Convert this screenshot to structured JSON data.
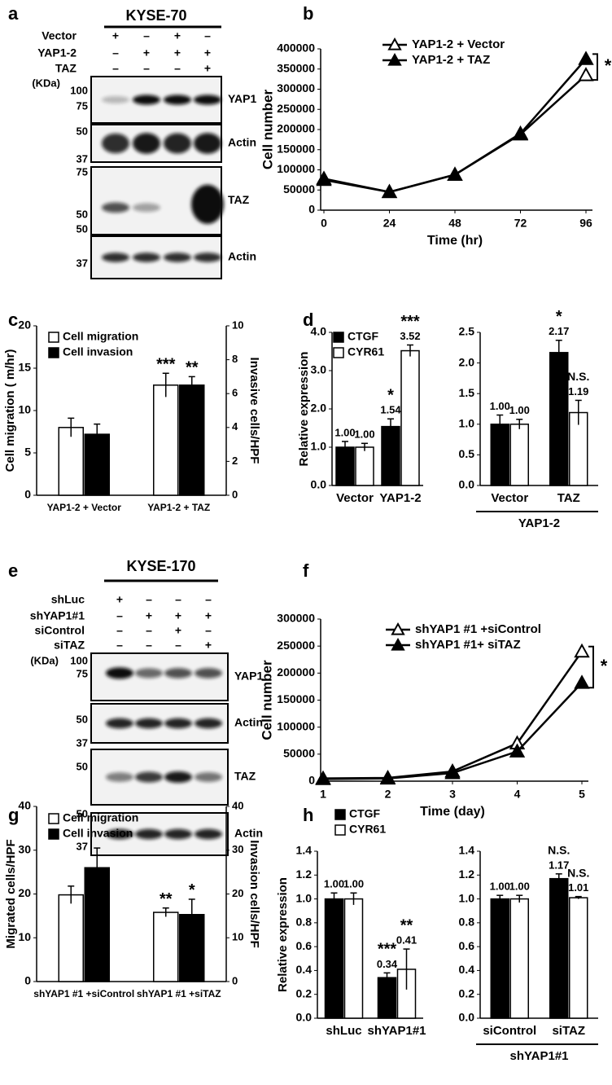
{
  "panel_labels": [
    "a",
    "b",
    "c",
    "d",
    "e",
    "f",
    "g",
    "h"
  ],
  "blots": [
    {
      "title": "KYSE-70",
      "unit": "(KDa)",
      "rows": [
        {
          "label": "Vector",
          "signs": [
            "+",
            "–",
            "+",
            "–"
          ]
        },
        {
          "label": "YAP1-2",
          "signs": [
            "–",
            "+",
            "+",
            "+"
          ]
        },
        {
          "label": "TAZ",
          "signs": [
            "–",
            "–",
            "–",
            "+"
          ]
        }
      ],
      "panels": [
        {
          "name": "YAP1",
          "markers": [
            "100",
            "75"
          ]
        },
        {
          "name": "Actin",
          "markers": [
            "50",
            "37"
          ]
        },
        {
          "name": "TAZ",
          "markers": [
            "75",
            "50"
          ]
        },
        {
          "name": "Actin",
          "markers": [
            "50",
            "37"
          ]
        }
      ]
    },
    {
      "title": "KYSE-170",
      "unit": "(KDa)",
      "rows": [
        {
          "label": "shLuc",
          "signs": [
            "+",
            "–",
            "–",
            "–"
          ]
        },
        {
          "label": "shYAP1#1",
          "signs": [
            "–",
            "+",
            "+",
            "+"
          ]
        },
        {
          "label": "siControl",
          "signs": [
            "–",
            "–",
            "+",
            "–"
          ]
        },
        {
          "label": "siTAZ",
          "signs": [
            "–",
            "–",
            "–",
            "+"
          ]
        }
      ],
      "panels": [
        {
          "name": "YAP1",
          "markers": [
            "100",
            "75"
          ]
        },
        {
          "name": "Actin",
          "markers": [
            "50",
            "37"
          ]
        },
        {
          "name": "TAZ",
          "markers": [
            "50"
          ]
        },
        {
          "name": "Actin",
          "markers": [
            "50",
            "37"
          ]
        }
      ]
    }
  ],
  "chart_data": [
    {
      "type": "line",
      "xlabel": "Time (hr)",
      "ylabel": "Cell number",
      "x": [
        0,
        24,
        48,
        72,
        96
      ],
      "xlim": [
        0,
        96
      ],
      "xticks": [
        0,
        24,
        48,
        72,
        96
      ],
      "ylim": [
        0,
        400000
      ],
      "yticks": [
        0,
        50000,
        100000,
        150000,
        200000,
        250000,
        300000,
        350000,
        400000
      ],
      "series": [
        {
          "name": "YAP1-2 + Vector",
          "color": "#000000",
          "marker_fill": "#ffffff",
          "values": [
            75000,
            45000,
            88000,
            188000,
            335000
          ]
        },
        {
          "name": "YAP1-2 + TAZ",
          "color": "#000000",
          "marker_fill": "#000000",
          "values": [
            78000,
            45000,
            88000,
            190000,
            375000
          ]
        }
      ],
      "annotation": "*"
    },
    {
      "type": "bar",
      "ylabel": "Cell migration ( m/hr)",
      "y2label": "Invasive cells/HPF",
      "categories": [
        "YAP1-2 + Vector",
        "YAP1-2 + TAZ"
      ],
      "ylim": [
        0,
        20
      ],
      "yticks": [
        0,
        5,
        10,
        15,
        20
      ],
      "y2lim": [
        0,
        10
      ],
      "y2ticks": [
        0,
        2,
        4,
        6,
        8,
        10
      ],
      "series": [
        {
          "name": "Cell migration",
          "color": "#ffffff",
          "values": [
            8.0,
            13.0
          ],
          "errors": [
            1.1,
            1.4
          ],
          "significance": [
            null,
            "***"
          ]
        },
        {
          "name": "Cell invasion",
          "color": "#000000",
          "axis": "y2",
          "values": [
            3.6,
            6.5
          ],
          "errors": [
            0.6,
            0.5
          ],
          "significance": [
            null,
            "**"
          ]
        }
      ]
    },
    {
      "type": "bar",
      "ylabel": "Relative expression",
      "categories": [
        "Vector",
        "YAP1-2"
      ],
      "ylim": [
        0,
        4
      ],
      "yticks": [
        {
          "value": 0,
          "label": "0.0"
        },
        {
          "value": 1,
          "label": "1.0"
        },
        {
          "value": 2,
          "label": "2.0"
        },
        {
          "value": 3,
          "label": "3.0"
        },
        {
          "value": 4,
          "label": "4.0"
        }
      ],
      "series": [
        {
          "name": "CTGF",
          "color": "#000000",
          "values": [
            1.0,
            1.54
          ],
          "value_labels": [
            "1.00",
            "1.54"
          ],
          "errors": [
            0.15,
            0.2
          ],
          "significance": [
            null,
            "*"
          ]
        },
        {
          "name": "CYR61",
          "color": "#ffffff",
          "values": [
            1.0,
            3.52
          ],
          "value_labels": [
            "1.00",
            "3.52"
          ],
          "errors": [
            0.1,
            0.15
          ],
          "significance": [
            null,
            "***"
          ]
        }
      ]
    },
    {
      "type": "bar",
      "group_label": "YAP1-2",
      "categories": [
        "Vector",
        "TAZ"
      ],
      "ylim": [
        0,
        2.5
      ],
      "yticks": [
        {
          "value": 0,
          "label": "0.0"
        },
        0.5,
        {
          "value": 1,
          "label": "1.0"
        },
        1.5,
        {
          "value": 2,
          "label": "2.0"
        },
        2.5
      ],
      "series": [
        {
          "color": "#000000",
          "values": [
            1.0,
            2.17
          ],
          "value_labels": [
            "1.00",
            "2.17"
          ],
          "errors": [
            0.15,
            0.2
          ],
          "significance": [
            null,
            "*"
          ]
        },
        {
          "color": "#ffffff",
          "values": [
            1.0,
            1.19
          ],
          "value_labels": [
            "1.00",
            "1.19"
          ],
          "errors": [
            0.08,
            0.2
          ],
          "significance": [
            null,
            "N.S."
          ]
        }
      ]
    },
    {
      "type": "line",
      "xlabel": "Time (day)",
      "ylabel": "Cell number",
      "x": [
        1,
        2,
        3,
        4,
        5
      ],
      "xlim": [
        1,
        5
      ],
      "xticks": [
        1,
        2,
        3,
        4,
        5
      ],
      "ylim": [
        0,
        300000
      ],
      "yticks": [
        0,
        50000,
        100000,
        150000,
        200000,
        250000,
        300000
      ],
      "series": [
        {
          "name": "shYAP1 #1 +siControl",
          "color": "#000000",
          "marker_fill": "#ffffff",
          "values": [
            5000,
            6000,
            18000,
            70000,
            240000
          ]
        },
        {
          "name": "shYAP1 #1+ siTAZ",
          "color": "#000000",
          "marker_fill": "#000000",
          "values": [
            4000,
            5000,
            15000,
            55000,
            182000
          ]
        }
      ],
      "annotation": "*"
    },
    {
      "type": "bar",
      "ylabel": "Migrated cells/HPF",
      "y2label": "Invasion cells/HPF",
      "categories": [
        "shYAP1 #1 +siControl",
        "shYAP1 #1 +siTAZ"
      ],
      "ylim": [
        0,
        40
      ],
      "yticks": [
        0,
        10,
        20,
        30,
        40
      ],
      "y2lim": [
        0,
        40
      ],
      "y2ticks": [
        0,
        10,
        20,
        30,
        40
      ],
      "series": [
        {
          "name": "Cell migration",
          "color": "#ffffff",
          "values": [
            19.8,
            15.8
          ],
          "errors": [
            2.0,
            1.0
          ],
          "significance": [
            null,
            "**"
          ]
        },
        {
          "name": "Cell invasion",
          "color": "#000000",
          "axis": "y2",
          "values": [
            26.0,
            15.3
          ],
          "errors": [
            4.5,
            3.5
          ],
          "significance": [
            null,
            "*"
          ]
        }
      ]
    },
    {
      "type": "bar",
      "ylabel": "Relative expression",
      "categories": [
        "shLuc",
        "shYAP1#1"
      ],
      "ylim": [
        0,
        1.4
      ],
      "yticks": [
        {
          "value": 0,
          "label": "0.0"
        },
        0.2,
        0.4,
        0.6,
        0.8,
        {
          "value": 1,
          "label": "1.0"
        },
        1.2,
        1.4
      ],
      "series": [
        {
          "name": "CTGF",
          "color": "#000000",
          "values": [
            1.0,
            0.34
          ],
          "value_labels": [
            "1.00",
            "0.34"
          ],
          "errors": [
            0.05,
            0.04
          ],
          "significance": [
            null,
            "***"
          ]
        },
        {
          "name": "CYR61",
          "color": "#ffffff",
          "values": [
            1.0,
            0.41
          ],
          "value_labels": [
            "1.00",
            "0.41"
          ],
          "errors": [
            0.05,
            0.17
          ],
          "significance": [
            null,
            "**"
          ]
        }
      ]
    },
    {
      "type": "bar",
      "group_label": "shYAP1#1",
      "categories": [
        "siControl",
        "siTAZ"
      ],
      "ylim": [
        0,
        1.4
      ],
      "yticks": [
        {
          "value": 0,
          "label": "0.0"
        },
        0.2,
        0.4,
        0.6,
        0.8,
        {
          "value": 1,
          "label": "1.0"
        },
        1.2,
        1.4
      ],
      "series": [
        {
          "color": "#000000",
          "values": [
            1.0,
            1.17
          ],
          "value_labels": [
            "1.00",
            "1.17"
          ],
          "errors": [
            0.03,
            0.04
          ],
          "significance": [
            null,
            "N.S."
          ]
        },
        {
          "color": "#ffffff",
          "values": [
            1.0,
            1.01
          ],
          "value_labels": [
            "1.00",
            "1.01"
          ],
          "errors": [
            0.03,
            0.01
          ],
          "significance": [
            null,
            "N.S."
          ]
        }
      ]
    }
  ]
}
